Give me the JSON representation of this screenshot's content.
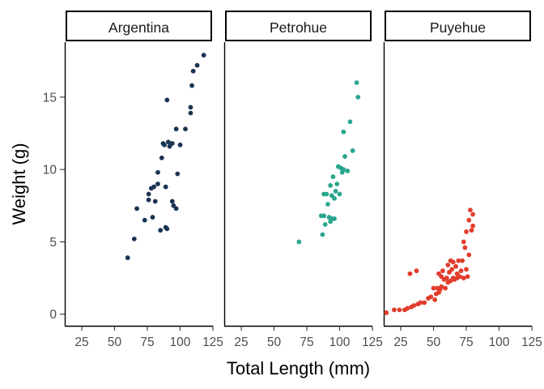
{
  "chart_data": {
    "type": "scatter",
    "xlabel": "Total Length (mm)",
    "ylabel": "Weight (g)",
    "xlim": [
      12,
      125
    ],
    "ylim": [
      -0.8,
      18.8
    ],
    "x_ticks": [
      25,
      50,
      75,
      100,
      125
    ],
    "y_ticks": [
      0,
      5,
      10,
      15
    ],
    "x_tick_labels": [
      "25",
      "50",
      "75",
      "100",
      "125"
    ],
    "y_tick_labels": [
      "0",
      "5",
      "10",
      "15"
    ],
    "grid": false,
    "panels": [
      {
        "name": "Argentina",
        "color": "#1a3352",
        "points": [
          [
            60,
            3.9
          ],
          [
            65,
            5.2
          ],
          [
            67,
            7.3
          ],
          [
            73,
            6.5
          ],
          [
            76,
            7.9
          ],
          [
            76,
            8.3
          ],
          [
            78,
            8.7
          ],
          [
            79,
            6.7
          ],
          [
            80,
            8.8
          ],
          [
            81,
            7.8
          ],
          [
            83,
            9.8
          ],
          [
            83,
            9.0
          ],
          [
            85,
            5.8
          ],
          [
            86,
            10.8
          ],
          [
            87,
            11.8
          ],
          [
            88,
            11.7
          ],
          [
            89,
            8.8
          ],
          [
            89,
            6.0
          ],
          [
            90,
            5.9
          ],
          [
            90,
            14.8
          ],
          [
            91,
            11.9
          ],
          [
            92,
            11.6
          ],
          [
            94,
            11.8
          ],
          [
            94,
            7.8
          ],
          [
            95,
            7.5
          ],
          [
            97,
            12.8
          ],
          [
            97,
            7.3
          ],
          [
            98,
            9.7
          ],
          [
            100,
            11.7
          ],
          [
            104,
            12.8
          ],
          [
            108,
            14.3
          ],
          [
            108,
            13.9
          ],
          [
            109,
            15.8
          ],
          [
            110,
            16.8
          ],
          [
            113,
            17.2
          ],
          [
            118,
            17.9
          ]
        ]
      },
      {
        "name": "Petrohue",
        "color": "#2aa68e",
        "points": [
          [
            69,
            5.0
          ],
          [
            86,
            6.8
          ],
          [
            87,
            5.5
          ],
          [
            88,
            6.8
          ],
          [
            88,
            8.3
          ],
          [
            89,
            6.2
          ],
          [
            90,
            8.3
          ],
          [
            91,
            7.6
          ],
          [
            92,
            6.7
          ],
          [
            93,
            8.9
          ],
          [
            93,
            6.4
          ],
          [
            94,
            8.2
          ],
          [
            94,
            6.6
          ],
          [
            95,
            9.5
          ],
          [
            96,
            8.0
          ],
          [
            96,
            6.6
          ],
          [
            97,
            8.5
          ],
          [
            98,
            9.0
          ],
          [
            99,
            10.2
          ],
          [
            100,
            8.3
          ],
          [
            101,
            10.1
          ],
          [
            102,
            9.8
          ],
          [
            103,
            12.6
          ],
          [
            103,
            10.0
          ],
          [
            104,
            10.9
          ],
          [
            106,
            9.9
          ],
          [
            108,
            13.3
          ],
          [
            110,
            11.3
          ],
          [
            113,
            16.0
          ],
          [
            114,
            15.0
          ]
        ]
      },
      {
        "name": "Puyehue",
        "color": "#e23d2c",
        "points": [
          [
            14,
            0.1
          ],
          [
            20,
            0.3
          ],
          [
            24,
            0.3
          ],
          [
            28,
            0.3
          ],
          [
            30,
            0.4
          ],
          [
            32,
            2.8
          ],
          [
            33,
            0.5
          ],
          [
            35,
            0.6
          ],
          [
            37,
            3.0
          ],
          [
            38,
            0.7
          ],
          [
            40,
            0.8
          ],
          [
            43,
            0.8
          ],
          [
            46,
            1.1
          ],
          [
            48,
            1.2
          ],
          [
            50,
            1.8
          ],
          [
            51,
            1.0
          ],
          [
            52,
            1.4
          ],
          [
            53,
            1.8
          ],
          [
            54,
            2.8
          ],
          [
            54,
            1.5
          ],
          [
            55,
            1.7
          ],
          [
            56,
            2.6
          ],
          [
            56,
            1.9
          ],
          [
            57,
            3.0
          ],
          [
            58,
            2.4
          ],
          [
            59,
            1.8
          ],
          [
            60,
            2.5
          ],
          [
            61,
            3.4
          ],
          [
            61,
            2.2
          ],
          [
            62,
            2.9
          ],
          [
            63,
            3.7
          ],
          [
            63,
            2.3
          ],
          [
            64,
            3.1
          ],
          [
            65,
            2.5
          ],
          [
            65,
            3.6
          ],
          [
            66,
            2.4
          ],
          [
            67,
            3.3
          ],
          [
            68,
            2.8
          ],
          [
            68,
            2.5
          ],
          [
            69,
            3.7
          ],
          [
            70,
            2.6
          ],
          [
            71,
            3.0
          ],
          [
            72,
            3.7
          ],
          [
            73,
            5.0
          ],
          [
            73,
            2.5
          ],
          [
            74,
            4.6
          ],
          [
            75,
            3.1
          ],
          [
            75,
            5.7
          ],
          [
            76,
            2.6
          ],
          [
            77,
            4.1
          ],
          [
            77,
            6.5
          ],
          [
            78,
            7.2
          ],
          [
            79,
            5.8
          ],
          [
            80,
            6.9
          ],
          [
            80,
            6.1
          ]
        ]
      }
    ]
  }
}
